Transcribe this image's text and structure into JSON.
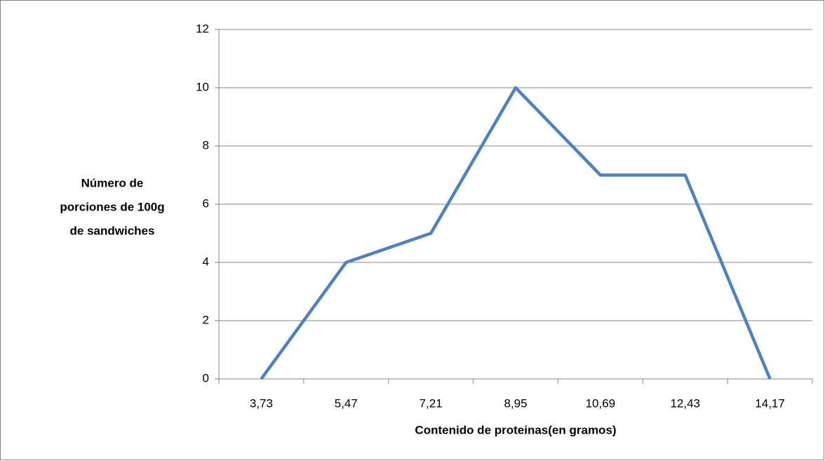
{
  "chart_data": {
    "type": "line",
    "x_label": "Contenido  de proteinas(en gramos)",
    "y_label": [
      "Número de",
      "porciones de 100g",
      "de  sandwiches"
    ],
    "categories": [
      "3,73",
      "5,47",
      "7,21",
      "8,95",
      "10,69",
      "12,43",
      "14,17"
    ],
    "values": [
      0,
      4,
      5,
      10,
      7,
      7,
      0
    ],
    "color": "#4f81bd",
    "ylim": [
      0,
      12
    ],
    "yticks": [
      0,
      2,
      4,
      6,
      8,
      10,
      12
    ],
    "grid": true
  }
}
